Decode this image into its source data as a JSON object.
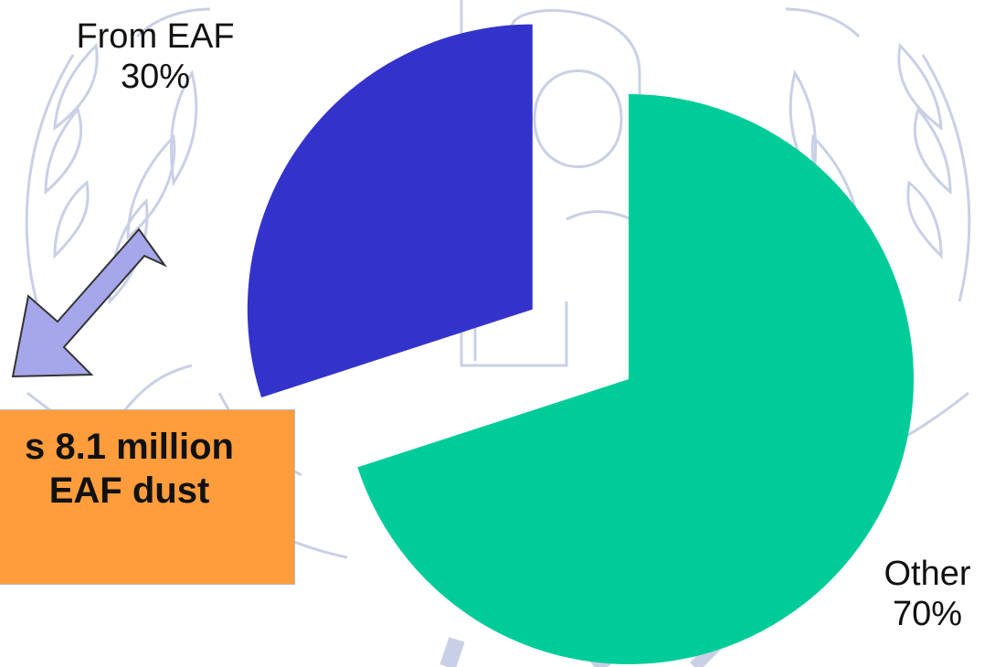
{
  "colors": {
    "from_eaf": "#3333cc",
    "other": "#00cc99",
    "callout_fill": "#ff9d3c",
    "arrow_fill": "#a6a6ea",
    "arrow_stroke": "#333333",
    "watermark": "#c9d0e6"
  },
  "watermark_icon": "un-emblem-watermark",
  "chart_data": {
    "type": "pie",
    "title": "",
    "slices": [
      {
        "name": "From EAF",
        "value": 30,
        "label": "From EAF",
        "pct_label": "30%",
        "exploded": true
      },
      {
        "name": "Other",
        "value": 70,
        "label": "Other",
        "pct_label": "70%",
        "exploded": false
      }
    ],
    "start_angle_deg": 0,
    "direction": "clockwise",
    "legend": "none"
  },
  "callout": {
    "line1": "s 8.1 million",
    "line2": "EAF dust"
  },
  "arrow_icon": "down-left-arrow-icon"
}
